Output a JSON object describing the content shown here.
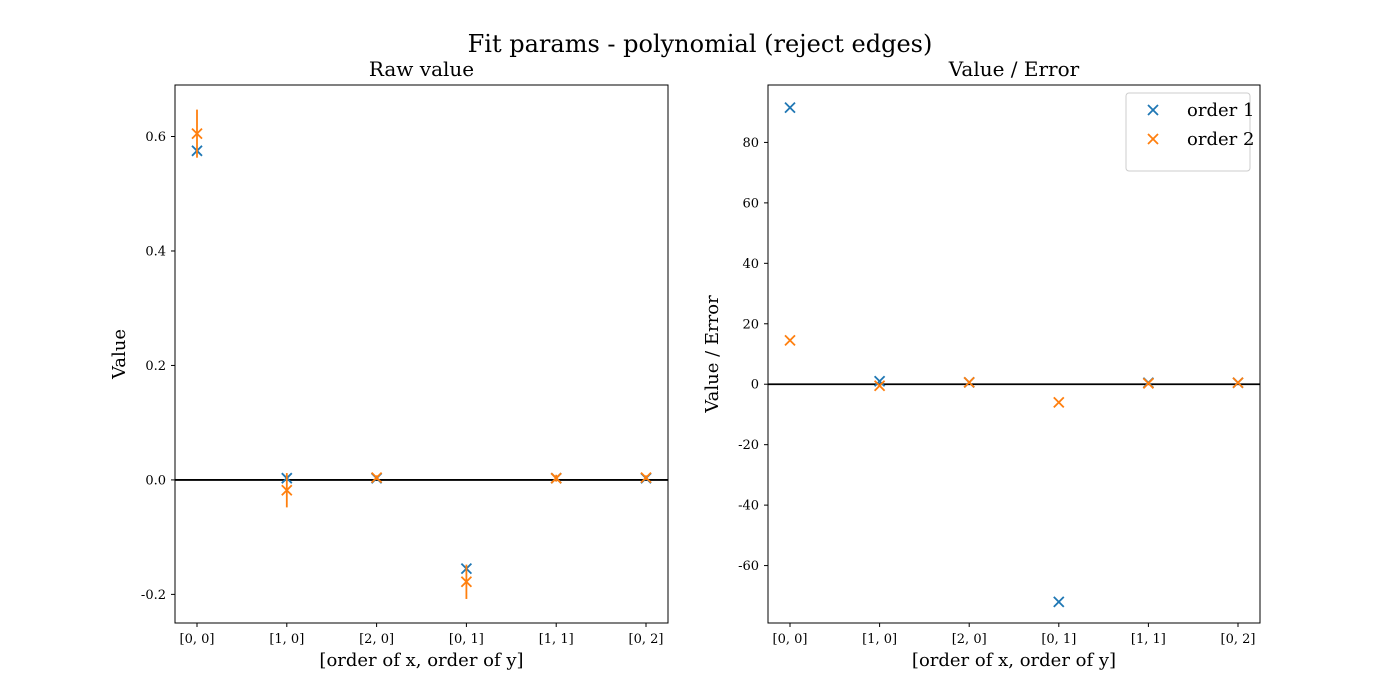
{
  "figure_title": "Fit params - polynomial (reject edges)",
  "colors": {
    "order1": "#1f77b4",
    "order2": "#ff7f0e",
    "zero_line": "#000000"
  },
  "chart_data": [
    {
      "type": "scatter",
      "title": "Raw value",
      "xlabel": "[order of x, order of y]",
      "ylabel": "Value",
      "categories": [
        "[0, 0]",
        "[1, 0]",
        "[2, 0]",
        "[0, 1]",
        "[1, 1]",
        "[0, 2]"
      ],
      "ylim": [
        -0.25,
        0.69
      ],
      "yticks": [
        -0.2,
        0.0,
        0.2,
        0.4,
        0.6
      ],
      "ytick_labels": [
        "-0.2",
        "0.0",
        "0.2",
        "0.4",
        "0.6"
      ],
      "hline": 0,
      "grid": false,
      "legend": null,
      "series": [
        {
          "values": [
            0.575,
            0.003,
            0.003,
            -0.155,
            0.003,
            0.003
          ],
          "errors": [
            0.004,
            0.004,
            0.002,
            0.004,
            0.002,
            0.002
          ],
          "color": "#1f77b4"
        },
        {
          "values": [
            0.605,
            -0.018,
            0.004,
            -0.178,
            0.003,
            0.004
          ],
          "errors": [
            0.042,
            0.03,
            0.004,
            0.03,
            0.006,
            0.004
          ],
          "color": "#ff7f0e"
        }
      ]
    },
    {
      "type": "scatter",
      "title": "Value / Error",
      "xlabel": "[order of x, order of y]",
      "ylabel": "Value / Error",
      "categories": [
        "[0, 0]",
        "[1, 0]",
        "[2, 0]",
        "[0, 1]",
        "[1, 1]",
        "[0, 2]"
      ],
      "ylim": [
        -79,
        99
      ],
      "yticks": [
        -60,
        -40,
        -20,
        0,
        20,
        40,
        60,
        80
      ],
      "ytick_labels": [
        "-60",
        "-40",
        "-20",
        "0",
        "20",
        "40",
        "60",
        "80"
      ],
      "hline": 0,
      "grid": false,
      "legend": "top-right",
      "series": [
        {
          "name": "order 1",
          "values": [
            91.5,
            1.0,
            0.6,
            -72.0,
            0.5,
            0.5
          ],
          "color": "#1f77b4"
        },
        {
          "name": "order 2",
          "values": [
            14.5,
            -0.5,
            0.6,
            -6.0,
            0.3,
            0.5
          ],
          "color": "#ff7f0e"
        }
      ]
    }
  ]
}
